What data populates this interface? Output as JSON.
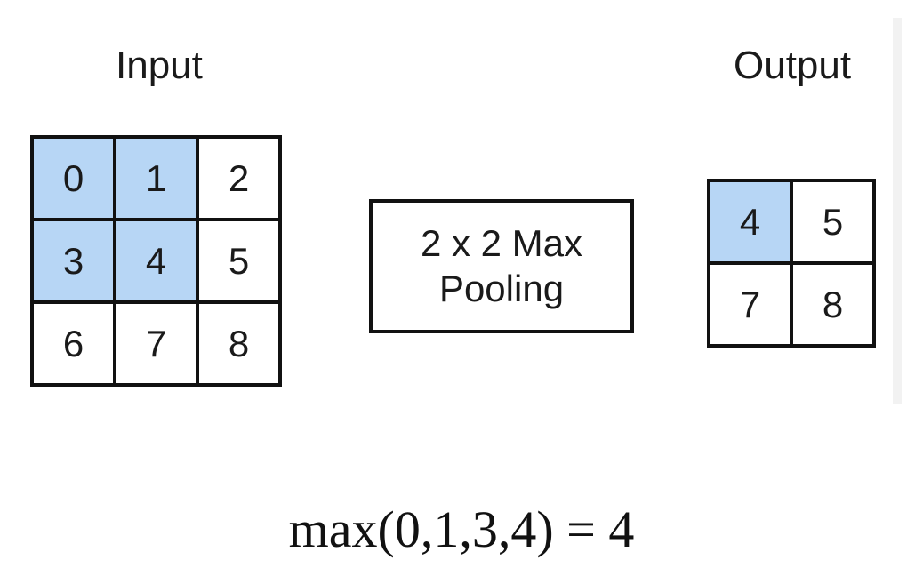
{
  "input": {
    "title": "Input",
    "cells": [
      {
        "value": "0",
        "highlighted": true
      },
      {
        "value": "1",
        "highlighted": true
      },
      {
        "value": "2",
        "highlighted": false
      },
      {
        "value": "3",
        "highlighted": true
      },
      {
        "value": "4",
        "highlighted": true
      },
      {
        "value": "5",
        "highlighted": false
      },
      {
        "value": "6",
        "highlighted": false
      },
      {
        "value": "7",
        "highlighted": false
      },
      {
        "value": "8",
        "highlighted": false
      }
    ]
  },
  "operation": {
    "line1": "2 x 2 Max",
    "line2": "Pooling"
  },
  "output": {
    "title": "Output",
    "cells": [
      {
        "value": "4",
        "highlighted": true
      },
      {
        "value": "5",
        "highlighted": false
      },
      {
        "value": "7",
        "highlighted": false
      },
      {
        "value": "8",
        "highlighted": false
      }
    ]
  },
  "formula": "max(0,1,3,4) = 4",
  "colors": {
    "highlight": "#b7d6f5",
    "border": "#111111",
    "background": "#ffffff"
  }
}
